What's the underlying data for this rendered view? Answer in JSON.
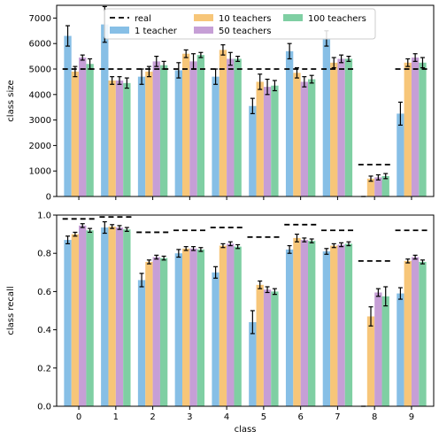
{
  "chart_data": [
    {
      "type": "bar",
      "ylabel": "class size",
      "xlabel": "",
      "ylim": [
        0,
        7500
      ],
      "yticks": [
        0,
        1000,
        2000,
        3000,
        4000,
        5000,
        6000,
        7000
      ],
      "categories": [
        "0",
        "1",
        "2",
        "3",
        "4",
        "5",
        "6",
        "7",
        "8",
        "9"
      ],
      "legend": {
        "placement": "top-center",
        "entries": [
          "real",
          "1 teacher",
          "10 teachers",
          "50 teachers",
          "100 teachers"
        ]
      },
      "real": [
        5000,
        5000,
        5000,
        5000,
        5000,
        5000,
        5000,
        5000,
        1250,
        5000
      ],
      "series": [
        {
          "name": "1 teacher",
          "color": "#87bfe6",
          "values": [
            6300,
            6750,
            4700,
            4950,
            4700,
            3550,
            5700,
            6200,
            0,
            3250
          ],
          "errors": [
            400,
            700,
            300,
            300,
            300,
            300,
            300,
            300,
            0,
            450
          ]
        },
        {
          "name": "10 teachers",
          "color": "#f7c679",
          "values": [
            4900,
            4550,
            4900,
            5600,
            5750,
            4500,
            4850,
            5250,
            700,
            5250
          ],
          "errors": [
            200,
            150,
            200,
            150,
            200,
            300,
            200,
            200,
            100,
            150
          ]
        },
        {
          "name": "50 teachers",
          "color": "#c69fd6",
          "values": [
            5450,
            4550,
            5300,
            5300,
            5400,
            4300,
            4500,
            5400,
            750,
            5450
          ],
          "errors": [
            100,
            150,
            200,
            300,
            250,
            300,
            200,
            150,
            100,
            150
          ]
        },
        {
          "name": "100 teachers",
          "color": "#7fcfa3",
          "values": [
            5200,
            4450,
            5150,
            5550,
            5400,
            4350,
            4600,
            5400,
            800,
            5250
          ],
          "errors": [
            200,
            200,
            150,
            100,
            100,
            200,
            150,
            100,
            100,
            200
          ]
        }
      ]
    },
    {
      "type": "bar",
      "ylabel": "class recall",
      "xlabel": "class",
      "ylim": [
        0,
        1.0
      ],
      "yticks": [
        "0.0",
        "0.2",
        "0.4",
        "0.6",
        "0.8",
        "1.0"
      ],
      "categories": [
        "0",
        "1",
        "2",
        "3",
        "4",
        "5",
        "6",
        "7",
        "8",
        "9"
      ],
      "real": [
        0.98,
        0.99,
        0.91,
        0.92,
        0.935,
        0.885,
        0.95,
        0.92,
        0.76,
        0.92
      ],
      "series": [
        {
          "name": "1 teacher",
          "color": "#87bfe6",
          "values": [
            0.87,
            0.935,
            0.66,
            0.8,
            0.7,
            0.44,
            0.82,
            0.81,
            0.0,
            0.59
          ],
          "errors": [
            0.02,
            0.03,
            0.035,
            0.02,
            0.03,
            0.06,
            0.02,
            0.015,
            0.0,
            0.03
          ]
        },
        {
          "name": "10 teachers",
          "color": "#f7c679",
          "values": [
            0.9,
            0.94,
            0.755,
            0.825,
            0.84,
            0.635,
            0.88,
            0.84,
            0.47,
            0.76
          ],
          "errors": [
            0.01,
            0.01,
            0.01,
            0.01,
            0.01,
            0.02,
            0.02,
            0.01,
            0.05,
            0.01
          ]
        },
        {
          "name": "50 teachers",
          "color": "#c69fd6",
          "values": [
            0.945,
            0.935,
            0.78,
            0.825,
            0.85,
            0.61,
            0.87,
            0.845,
            0.595,
            0.78
          ],
          "errors": [
            0.01,
            0.01,
            0.01,
            0.01,
            0.01,
            0.015,
            0.01,
            0.01,
            0.02,
            0.01
          ]
        },
        {
          "name": "100 teachers",
          "color": "#7fcfa3",
          "values": [
            0.92,
            0.925,
            0.775,
            0.82,
            0.835,
            0.6,
            0.865,
            0.85,
            0.575,
            0.755
          ],
          "errors": [
            0.01,
            0.01,
            0.01,
            0.01,
            0.01,
            0.015,
            0.01,
            0.01,
            0.05,
            0.01
          ]
        }
      ]
    }
  ]
}
